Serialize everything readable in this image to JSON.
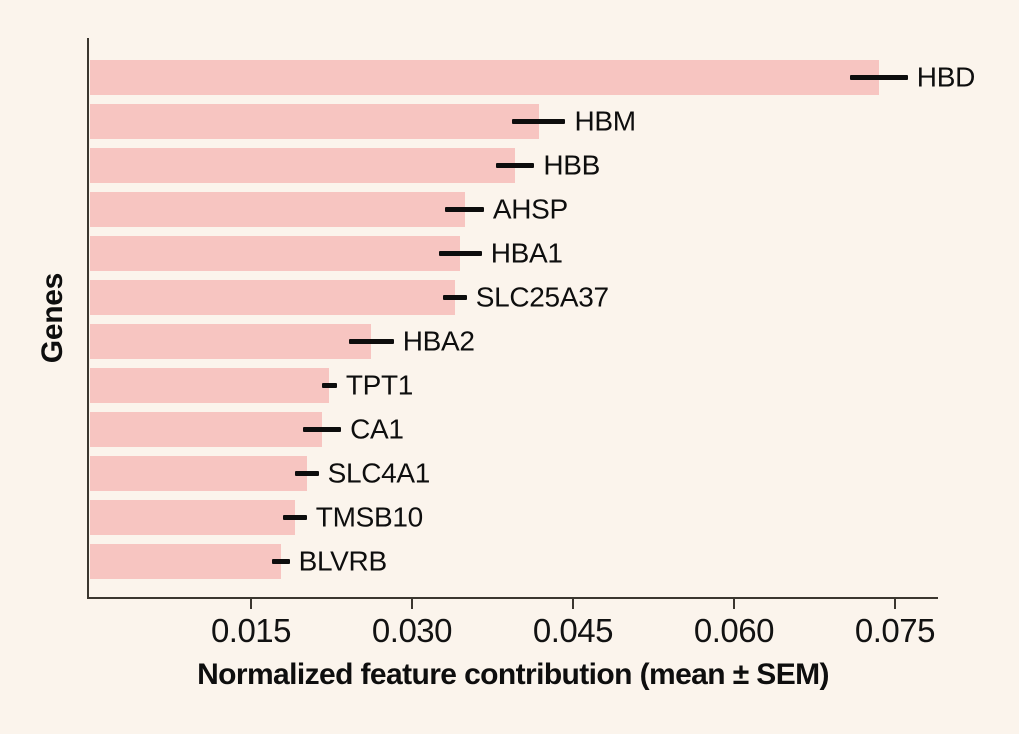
{
  "chart_data": {
    "type": "bar",
    "orientation": "horizontal",
    "title": "",
    "xlabel": "Normalized feature contribution (mean ± SEM)",
    "ylabel": "Genes",
    "categories": [
      "HBD",
      "HBM",
      "HBB",
      "AHSP",
      "HBA1",
      "SLC25A37",
      "HBA2",
      "TPT1",
      "CA1",
      "SLC4A1",
      "TMSB10",
      "BLVRB"
    ],
    "values": [
      0.0735,
      0.0418,
      0.0396,
      0.0349,
      0.0345,
      0.034,
      0.0262,
      0.0223,
      0.0216,
      0.0202,
      0.0191,
      0.0178
    ],
    "sem": [
      0.0027,
      0.0025,
      0.0018,
      0.0018,
      0.002,
      0.0011,
      0.0021,
      0.0007,
      0.0018,
      0.0011,
      0.0011,
      0.0008
    ],
    "error_bar_style": "mean ± SEM, no caps",
    "xticks": [
      0.015,
      0.03,
      0.045,
      0.06,
      0.075
    ],
    "xtick_labels": [
      "0.015",
      "0.030",
      "0.045",
      "0.060",
      "0.075"
    ],
    "xlim": [
      0,
      0.0792
    ],
    "grid": false,
    "legend": null,
    "colors": {
      "bar": "#f7c5c1",
      "background": "#fbf4ec",
      "spine": "#3b362f",
      "error_bar": "#0d0d0d",
      "text": "#0e0e0e"
    }
  }
}
